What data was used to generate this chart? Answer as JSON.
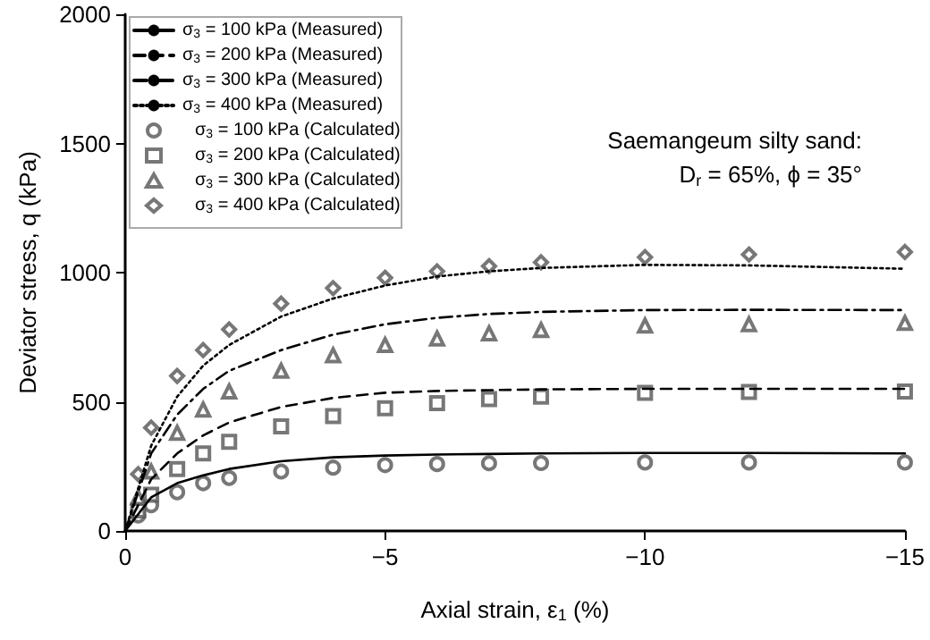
{
  "chart_data": {
    "type": "line",
    "xlabel": "Axial strain, ε$_{1}$ (%)",
    "ylabel": "Deviator stress, q (kPa)",
    "xlim": [
      0,
      -15
    ],
    "xticks": [
      0,
      {
        "value": -5,
        "label": "−5"
      },
      {
        "value": -10,
        "label": "−10"
      },
      {
        "value": -15,
        "label": "−15"
      }
    ],
    "ylim": [
      0,
      2000
    ],
    "yticks": [
      0,
      500,
      1000,
      1500,
      2000
    ],
    "grid": false,
    "legend": "top left",
    "annotations": [
      "Saemangeum silty sand:",
      "D$_{r}$ = 65%, ϕ = 35°"
    ],
    "x": [
      0,
      -0.5,
      -1,
      -1.5,
      -2,
      -3,
      -4,
      -5,
      -6,
      -7,
      -8,
      -10,
      -12,
      -15
    ],
    "series": [
      {
        "name": "σ$_{3}$ = 100 kPa (Measured)",
        "line_style": "solid",
        "marker": "none",
        "color": "#000000",
        "values": [
          0,
          130,
          185,
          215,
          240,
          270,
          285,
          292,
          296,
          298,
          300,
          302,
          302,
          300
        ]
      },
      {
        "name": "σ$_{3}$ = 200 kPa (Measured)",
        "line_style": "dashed",
        "marker": "none",
        "color": "#000000",
        "values": [
          0,
          200,
          300,
          370,
          420,
          480,
          515,
          535,
          542,
          545,
          548,
          550,
          550,
          550
        ]
      },
      {
        "name": "σ$_{3}$ = 300 kPa (Measured)",
        "line_style": "dashdot",
        "marker": "none",
        "color": "#000000",
        "values": [
          0,
          300,
          450,
          550,
          620,
          700,
          760,
          800,
          825,
          840,
          848,
          855,
          856,
          855
        ]
      },
      {
        "name": "σ$_{3}$ = 400 kPa (Measured)",
        "line_style": "dotted",
        "marker": "none",
        "color": "#000000",
        "values": [
          0,
          330,
          520,
          640,
          720,
          830,
          900,
          950,
          985,
          1005,
          1018,
          1030,
          1028,
          1015
        ]
      },
      {
        "name": "σ$_{3}$ = 100 kPa (Calculated)",
        "type": "scatter",
        "marker": "circle",
        "color": "#555555",
        "x": [
          -0.25,
          -0.5,
          -1,
          -1.5,
          -2,
          -3,
          -4,
          -5,
          -6,
          -7,
          -8,
          -10,
          -12,
          -15
        ],
        "values": [
          60,
          100,
          150,
          185,
          205,
          230,
          245,
          255,
          259,
          262,
          263,
          265,
          265,
          265
        ]
      },
      {
        "name": "σ$_{3}$ = 200 kPa (Calculated)",
        "type": "scatter",
        "marker": "square",
        "color": "#555555",
        "x": [
          -0.25,
          -0.5,
          -1,
          -1.5,
          -2,
          -3,
          -4,
          -5,
          -6,
          -7,
          -8,
          -10,
          -12,
          -15
        ],
        "values": [
          80,
          140,
          240,
          300,
          345,
          405,
          445,
          475,
          495,
          510,
          520,
          535,
          538,
          540
        ]
      },
      {
        "name": "σ$_{3}$ = 300 kPa (Calculated)",
        "type": "scatter",
        "marker": "triangle",
        "color": "#555555",
        "x": [
          -0.25,
          -0.5,
          -1,
          -1.5,
          -2,
          -3,
          -4,
          -5,
          -6,
          -7,
          -8,
          -10,
          -12,
          -15
        ],
        "values": [
          130,
          230,
          380,
          470,
          540,
          620,
          680,
          720,
          745,
          765,
          778,
          795,
          800,
          805
        ]
      },
      {
        "name": "σ$_{3}$ = 400 kPa (Calculated)",
        "type": "scatter",
        "marker": "diamond",
        "color": "#555555",
        "x": [
          -0.25,
          -0.5,
          -1,
          -1.5,
          -2,
          -3,
          -4,
          -5,
          -6,
          -7,
          -8,
          -10,
          -12,
          -15
        ],
        "values": [
          220,
          400,
          600,
          700,
          780,
          880,
          940,
          980,
          1005,
          1025,
          1040,
          1060,
          1070,
          1080
        ]
      }
    ]
  }
}
